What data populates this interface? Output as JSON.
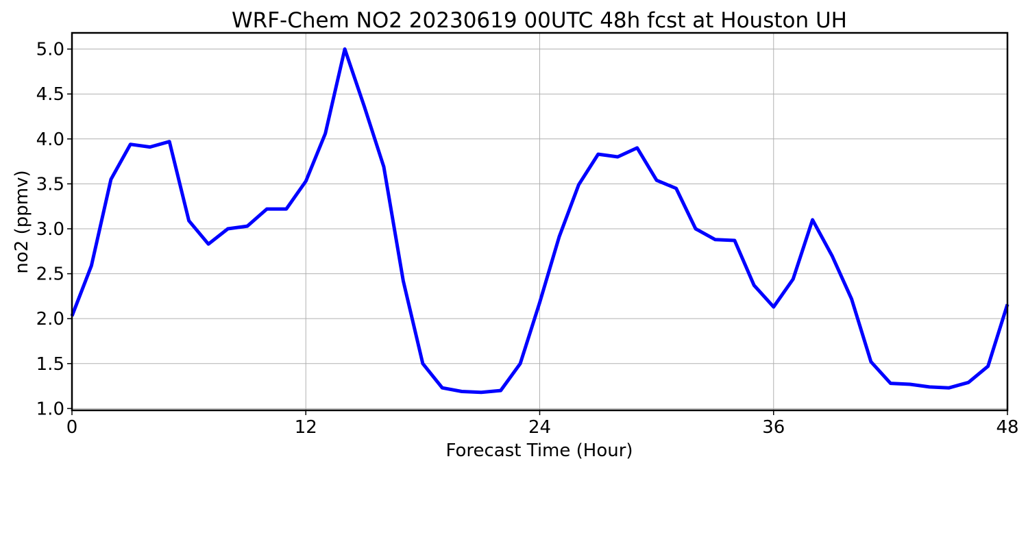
{
  "chart_data": {
    "type": "line",
    "title": "WRF-Chem NO2  20230619 00UTC 48h fcst at Houston UH",
    "xlabel": "Forecast Time (Hour)",
    "ylabel": "no2  (ppmv)",
    "xlim": [
      0,
      48
    ],
    "ylim": [
      0.98,
      5.18
    ],
    "xticks": [
      0,
      12,
      24,
      36,
      48
    ],
    "xtick_labels": [
      "0",
      "12",
      "24",
      "36",
      "48"
    ],
    "yticks": [
      1.0,
      1.5,
      2.0,
      2.5,
      3.0,
      3.5,
      4.0,
      4.5,
      5.0
    ],
    "ytick_labels": [
      "1.0",
      "1.5",
      "2.0",
      "2.5",
      "3.0",
      "3.5",
      "4.0",
      "4.5",
      "5.0"
    ],
    "grid": true,
    "legend": "none",
    "series": [
      {
        "color": "#0000ff",
        "x": [
          0,
          1,
          2,
          3,
          4,
          5,
          6,
          7,
          8,
          9,
          10,
          11,
          12,
          13,
          14,
          15,
          16,
          17,
          18,
          19,
          20,
          21,
          22,
          23,
          24,
          25,
          26,
          27,
          28,
          29,
          30,
          31,
          32,
          33,
          34,
          35,
          36,
          37,
          38,
          39,
          40,
          41,
          42,
          43,
          44,
          45,
          46,
          47,
          48
        ],
        "values": [
          2.03,
          2.59,
          3.55,
          3.94,
          3.91,
          3.97,
          3.09,
          2.83,
          3.0,
          3.03,
          3.22,
          3.22,
          3.53,
          4.06,
          5.0,
          4.36,
          3.69,
          2.42,
          1.5,
          1.23,
          1.19,
          1.18,
          1.2,
          1.5,
          2.18,
          2.91,
          3.49,
          3.83,
          3.8,
          3.9,
          3.54,
          3.45,
          3.0,
          2.88,
          2.87,
          2.37,
          2.13,
          2.44,
          3.1,
          2.7,
          2.22,
          1.52,
          1.28,
          1.27,
          1.24,
          1.23,
          1.29,
          1.47,
          2.16
        ]
      }
    ]
  }
}
